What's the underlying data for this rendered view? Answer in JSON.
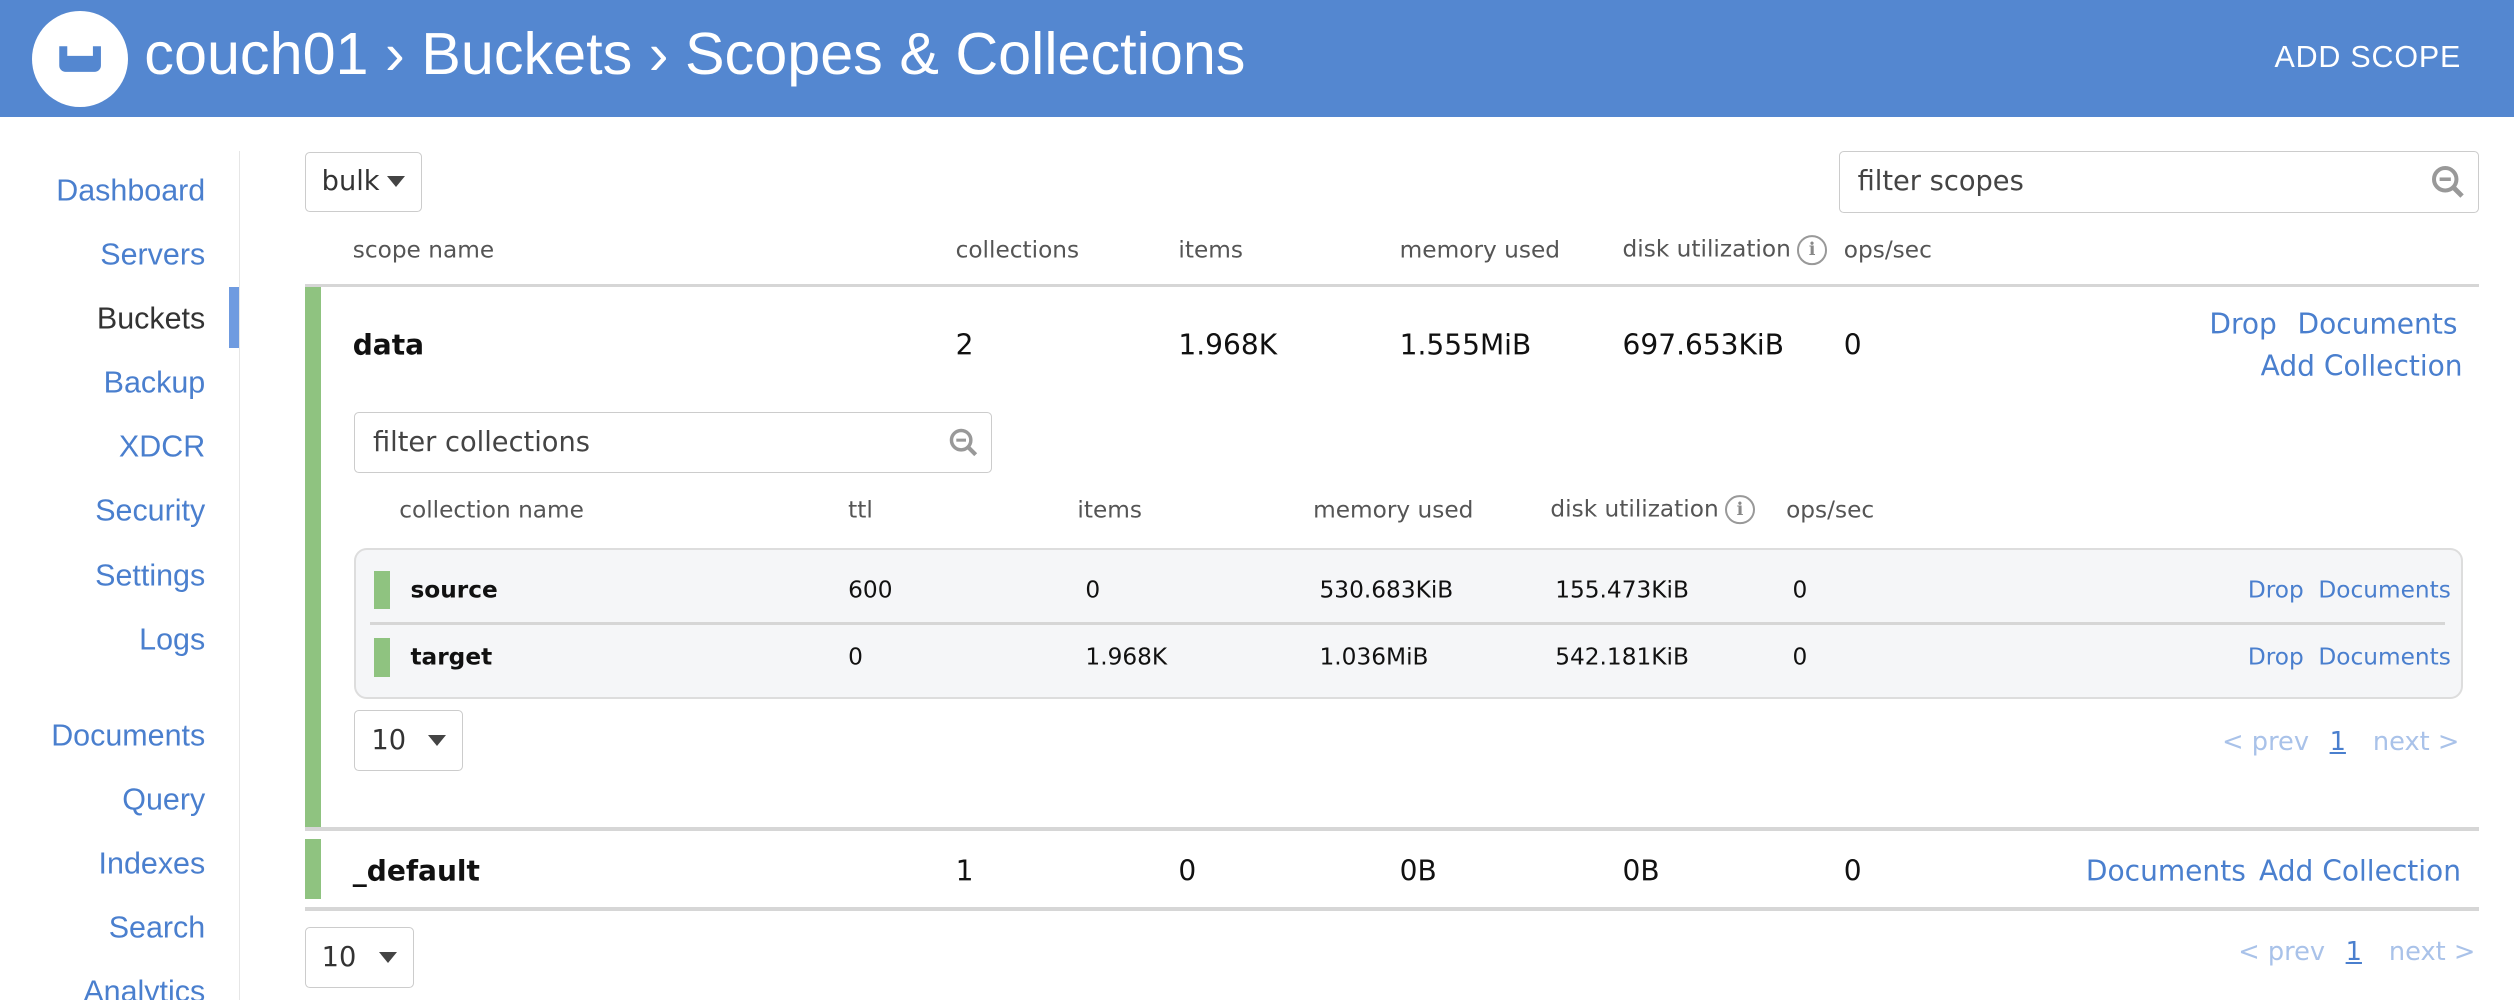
{
  "header": {
    "breadcrumb": [
      "couch01",
      "Buckets",
      "Scopes & Collections"
    ],
    "separator": "›",
    "add_scope": "ADD SCOPE",
    "color": "#5487d0"
  },
  "sidebar": {
    "items": [
      {
        "label": "Dashboard"
      },
      {
        "label": "Servers"
      },
      {
        "label": "Buckets",
        "active": true
      },
      {
        "label": "Backup"
      },
      {
        "label": "XDCR"
      },
      {
        "label": "Security"
      },
      {
        "label": "Settings"
      },
      {
        "label": "Logs"
      },
      {
        "label": "Documents"
      },
      {
        "label": "Query"
      },
      {
        "label": "Indexes"
      },
      {
        "label": "Search"
      },
      {
        "label": "Analytics"
      }
    ]
  },
  "main": {
    "bucket_select": "bulk",
    "filter_scopes_placeholder": "filter scopes",
    "scope_columns": [
      "scope name",
      "collections",
      "items",
      "memory used",
      "disk utilization",
      "ops/sec"
    ],
    "scopes": [
      {
        "name": "data",
        "collections": "2",
        "items": "1.968K",
        "memory": "1.555MiB",
        "disk": "697.653KiB",
        "ops": "0",
        "actions": [
          "Drop",
          "Documents",
          "Add Collection"
        ],
        "filter_collections_placeholder": "filter collections",
        "collection_columns": [
          "collection name",
          "ttl",
          "items",
          "memory used",
          "disk utilization",
          "ops/sec"
        ],
        "collections_list": [
          {
            "name": "source",
            "ttl": "600",
            "items": "0",
            "memory": "530.683KiB",
            "disk": "155.473KiB",
            "ops": "0",
            "actions": [
              "Drop",
              "Documents"
            ]
          },
          {
            "name": "target",
            "ttl": "0",
            "items": "1.968K",
            "memory": "1.036MiB",
            "disk": "542.181KiB",
            "ops": "0",
            "actions": [
              "Drop",
              "Documents"
            ]
          }
        ],
        "page_size": "10",
        "pagination": {
          "prev": "< prev",
          "page": "1",
          "next": "next >"
        }
      },
      {
        "name": "_default",
        "collections": "1",
        "items": "0",
        "memory": "0B",
        "disk": "0B",
        "ops": "0",
        "actions": [
          "Documents",
          "Add Collection"
        ]
      }
    ],
    "page_size": "10",
    "pagination": {
      "prev": "< prev",
      "page": "1",
      "next": "next >"
    }
  },
  "icons": {
    "logo": "couchbase-logo",
    "search": "search-zoom-out-icon",
    "info": "info-icon"
  }
}
